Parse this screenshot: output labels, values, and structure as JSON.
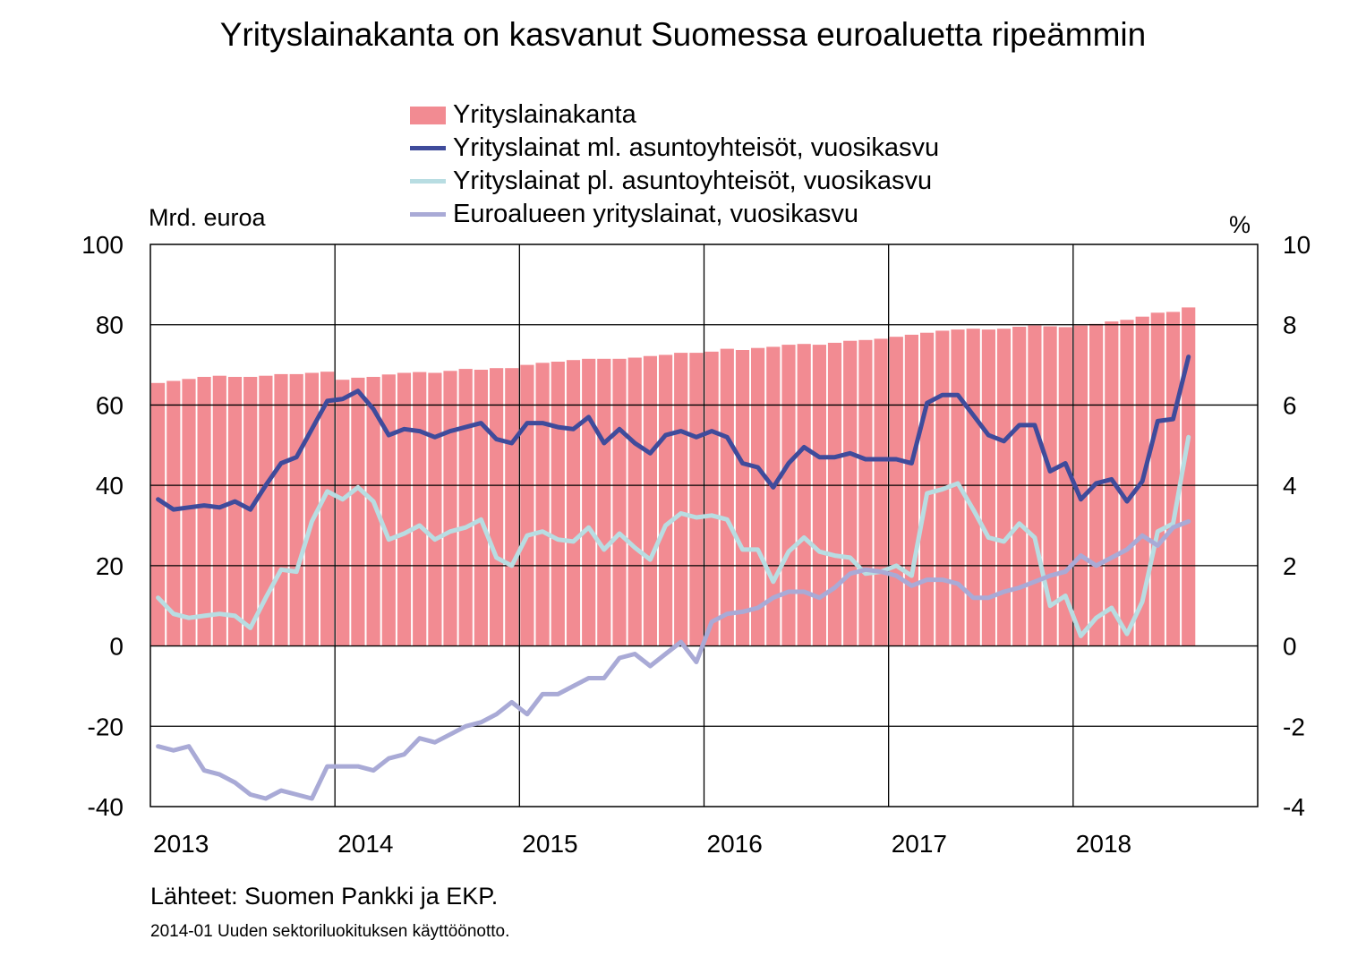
{
  "title": "Yrityslainakanta on kasvanut Suomessa euroaluetta ripeämmin",
  "legend": [
    {
      "label": "Yrityslainakanta",
      "kind": "bar",
      "color": "#f28b92"
    },
    {
      "label": "Yrityslainat ml. asuntoyhteisöt, vuosikasvu",
      "kind": "line",
      "color": "#3f4b9b"
    },
    {
      "label": "Yrityslainat pl. asuntoyhteisöt, vuosikasvu",
      "kind": "line",
      "color": "#b8dde2"
    },
    {
      "label": "Euroalueen yrityslainat, vuosikasvu",
      "kind": "line",
      "color": "#a9aad6"
    }
  ],
  "left_axis_unit": "Mrd. euroa",
  "right_axis_unit": "%",
  "source": "Lähteet: Suomen Pankki ja EKP.",
  "footnote": "2014-01 Uuden sektoriluokituksen käyttöönotto.",
  "chart_data": {
    "type": "bar+line",
    "x_labels": [
      "2013",
      "2014",
      "2015",
      "2016",
      "2017",
      "2018"
    ],
    "left_axis": {
      "ylim": [
        -40,
        100
      ],
      "ticks": [
        "100",
        "80",
        "60",
        "40",
        "20",
        "0",
        "-20",
        "-40"
      ]
    },
    "right_axis": {
      "ylim": [
        -4,
        10
      ],
      "ticks": [
        "10",
        "8",
        "6",
        "4",
        "2",
        "0",
        "-2",
        "-4"
      ]
    },
    "grid": true,
    "legend_position": "top",
    "series": [
      {
        "name": "Yrityslainakanta",
        "type": "bar",
        "axis": "left",
        "color": "#f28b92",
        "values": [
          65.5,
          66.0,
          66.5,
          67.0,
          67.3,
          67.0,
          67.0,
          67.3,
          67.7,
          67.7,
          68.0,
          68.3,
          66.3,
          66.8,
          67.0,
          67.6,
          68.0,
          68.2,
          68.0,
          68.5,
          69.0,
          68.8,
          69.2,
          69.2,
          70.0,
          70.5,
          70.8,
          71.2,
          71.5,
          71.5,
          71.5,
          71.8,
          72.2,
          72.5,
          73.0,
          73.0,
          73.3,
          74.0,
          73.7,
          74.2,
          74.5,
          75.0,
          75.2,
          75.0,
          75.5,
          76.0,
          76.2,
          76.5,
          77.0,
          77.5,
          78.0,
          78.5,
          78.8,
          79.0,
          78.8,
          79.0,
          79.5,
          79.8,
          79.6,
          79.4,
          79.8,
          80.2,
          80.8,
          81.2,
          82.0,
          83.0,
          83.2,
          84.3
        ]
      },
      {
        "name": "Yrityslainat ml. asuntoyhteisöt, vuosikasvu",
        "type": "line",
        "axis": "right",
        "color": "#3f4b9b",
        "values": [
          3.65,
          3.4,
          3.45,
          3.5,
          3.45,
          3.6,
          3.4,
          4.0,
          4.55,
          4.7,
          5.4,
          6.1,
          6.15,
          6.35,
          5.9,
          5.25,
          5.4,
          5.35,
          5.2,
          5.35,
          5.45,
          5.55,
          5.15,
          5.05,
          5.55,
          5.55,
          5.45,
          5.4,
          5.7,
          5.05,
          5.4,
          5.05,
          4.8,
          5.25,
          5.35,
          5.2,
          5.35,
          5.2,
          4.55,
          4.45,
          3.95,
          4.55,
          4.95,
          4.7,
          4.7,
          4.8,
          4.65,
          4.65,
          4.65,
          4.55,
          6.05,
          6.25,
          6.25,
          5.75,
          5.25,
          5.1,
          5.5,
          5.5,
          4.35,
          4.55,
          3.65,
          4.05,
          4.15,
          3.6,
          4.1,
          5.6,
          5.65,
          7.2
        ]
      },
      {
        "name": "Yrityslainat pl. asuntoyhteisöt, vuosikasvu",
        "type": "line",
        "axis": "right",
        "color": "#b8dde2",
        "values": [
          1.2,
          0.8,
          0.7,
          0.75,
          0.8,
          0.75,
          0.45,
          1.2,
          1.9,
          1.85,
          3.1,
          3.85,
          3.65,
          3.95,
          3.6,
          2.65,
          2.8,
          3.0,
          2.65,
          2.85,
          2.95,
          3.15,
          2.2,
          2.0,
          2.75,
          2.85,
          2.65,
          2.6,
          2.95,
          2.4,
          2.8,
          2.45,
          2.15,
          3.0,
          3.3,
          3.2,
          3.25,
          3.15,
          2.4,
          2.4,
          1.6,
          2.35,
          2.7,
          2.35,
          2.25,
          2.2,
          1.8,
          1.85,
          2.0,
          1.75,
          3.8,
          3.9,
          4.05,
          3.4,
          2.7,
          2.6,
          3.05,
          2.7,
          1.0,
          1.25,
          0.25,
          0.7,
          0.95,
          0.3,
          1.1,
          2.85,
          3.05,
          5.2
        ]
      },
      {
        "name": "Euroalueen yrityslainat, vuosikasvu",
        "type": "line",
        "axis": "right",
        "color": "#a9aad6",
        "values": [
          -2.5,
          -2.6,
          -2.5,
          -3.1,
          -3.2,
          -3.4,
          -3.7,
          -3.8,
          -3.6,
          -3.7,
          -3.8,
          -3.0,
          -3.0,
          -3.0,
          -3.1,
          -2.8,
          -2.7,
          -2.3,
          -2.4,
          -2.2,
          -2.0,
          -1.9,
          -1.7,
          -1.4,
          -1.7,
          -1.2,
          -1.2,
          -1.0,
          -0.8,
          -0.8,
          -0.3,
          -0.2,
          -0.5,
          -0.2,
          0.1,
          -0.4,
          0.6,
          0.8,
          0.85,
          0.95,
          1.2,
          1.35,
          1.35,
          1.2,
          1.45,
          1.8,
          1.9,
          1.85,
          1.75,
          1.5,
          1.65,
          1.65,
          1.55,
          1.2,
          1.2,
          1.35,
          1.45,
          1.6,
          1.75,
          1.85,
          2.25,
          2.0,
          2.2,
          2.4,
          2.75,
          2.5,
          2.95,
          3.1
        ]
      }
    ]
  }
}
